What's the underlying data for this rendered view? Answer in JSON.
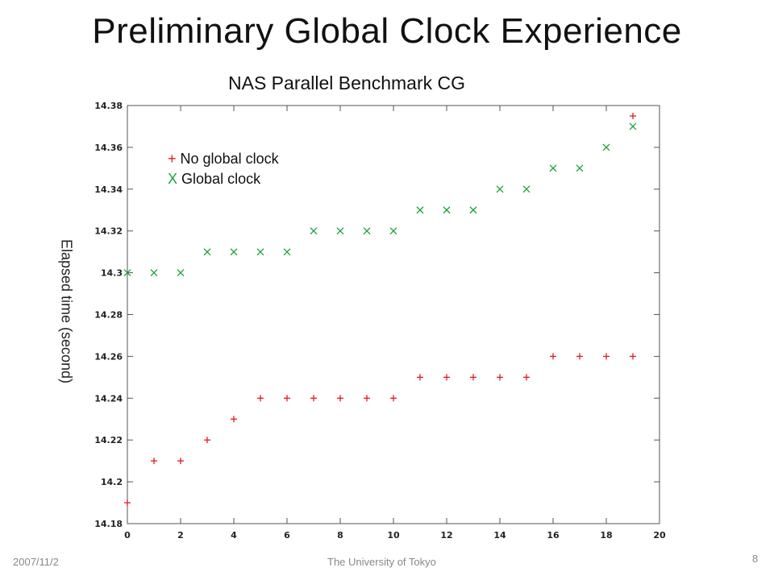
{
  "slide": {
    "title": "Preliminary Global Clock Experience",
    "footer_date": "2007/11/2",
    "footer_org": "The University of Tokyo",
    "page_number": "8"
  },
  "chart_data": {
    "type": "scatter",
    "title": "NAS Parallel Benchmark CG",
    "xlabel": "",
    "ylabel": "Elapsed time (second)",
    "xlim": [
      0,
      20
    ],
    "ylim": [
      14.18,
      14.38
    ],
    "x_ticks": [
      "0",
      "2",
      "4",
      "6",
      "8",
      "10",
      "12",
      "14",
      "16",
      "18",
      "20"
    ],
    "y_ticks": [
      "14.18",
      "14.2",
      "14.22",
      "14.24",
      "14.26",
      "14.28",
      "14.3",
      "14.32",
      "14.34",
      "14.36",
      "14.38"
    ],
    "grid": false,
    "legend_position": "top-left",
    "series": [
      {
        "name": "No global clock",
        "marker": "+",
        "color": "#e41a1c",
        "x": [
          0,
          1,
          2,
          3,
          4,
          5,
          6,
          7,
          8,
          9,
          10,
          11,
          12,
          13,
          14,
          15,
          16,
          17,
          18,
          19
        ],
        "y": [
          14.19,
          14.21,
          14.21,
          14.22,
          14.23,
          14.24,
          14.24,
          14.24,
          14.24,
          14.24,
          14.24,
          14.25,
          14.25,
          14.25,
          14.25,
          14.25,
          14.26,
          14.26,
          14.26,
          14.26
        ]
      },
      {
        "name": "Global clock",
        "marker": "X",
        "color": "#1aa33a",
        "x": [
          0,
          1,
          2,
          3,
          4,
          5,
          6,
          7,
          8,
          9,
          10,
          11,
          12,
          13,
          14,
          15,
          16,
          17,
          18,
          19
        ],
        "y": [
          14.3,
          14.3,
          14.3,
          14.31,
          14.31,
          14.31,
          14.31,
          14.32,
          14.32,
          14.32,
          14.32,
          14.33,
          14.33,
          14.33,
          14.34,
          14.34,
          14.35,
          14.35,
          14.36,
          14.37
        ]
      }
    ],
    "extra_points": [
      {
        "series": 0,
        "x": 19,
        "y": 14.375
      }
    ]
  }
}
